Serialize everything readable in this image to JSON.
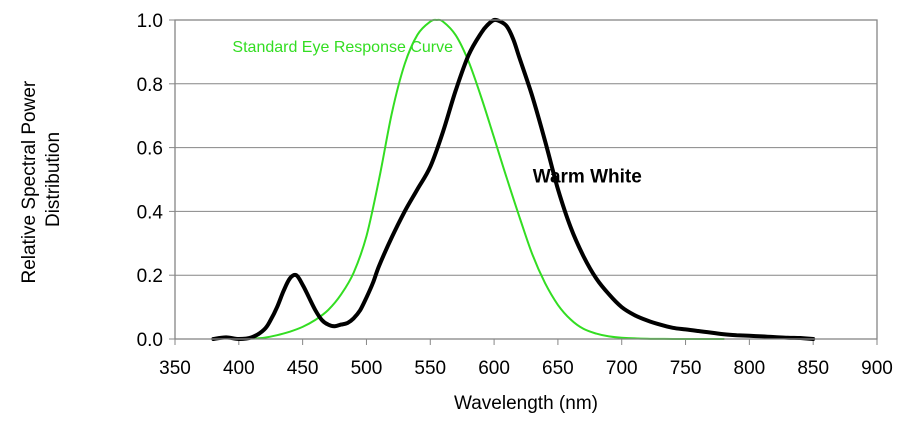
{
  "chart_data": {
    "type": "line",
    "title": "",
    "xlabel": "Wavelength (nm)",
    "ylabel_lines": [
      "Relative Spectral Power",
      "Distribution"
    ],
    "xlim": [
      350,
      900
    ],
    "ylim": [
      0,
      1
    ],
    "x_ticks": [
      "350",
      "400",
      "450",
      "500",
      "550",
      "600",
      "650",
      "700",
      "750",
      "800",
      "850",
      "900"
    ],
    "y_ticks": [
      "0.0",
      "0.2",
      "0.4",
      "0.6",
      "0.8",
      "1.0"
    ],
    "grid": true,
    "legend": "none",
    "series": [
      {
        "name": "Standard Eye Response Curve",
        "color": "#33dd22",
        "x": [
          410,
          420,
          430,
          440,
          450,
          460,
          470,
          480,
          490,
          500,
          510,
          520,
          530,
          540,
          550,
          555,
          560,
          570,
          580,
          590,
          600,
          610,
          620,
          630,
          640,
          650,
          660,
          670,
          680,
          690,
          700,
          720,
          740,
          760,
          780
        ],
        "y": [
          0.001,
          0.004,
          0.012,
          0.023,
          0.038,
          0.06,
          0.091,
          0.139,
          0.208,
          0.323,
          0.503,
          0.71,
          0.862,
          0.954,
          0.995,
          1.0,
          0.995,
          0.952,
          0.87,
          0.757,
          0.631,
          0.503,
          0.381,
          0.265,
          0.175,
          0.107,
          0.061,
          0.032,
          0.017,
          0.008,
          0.004,
          0.001,
          0.0,
          0.0,
          0.0
        ]
      },
      {
        "name": "Warm White",
        "color": "#000000",
        "x": [
          380,
          390,
          400,
          410,
          420,
          425,
          430,
          435,
          440,
          445,
          450,
          455,
          460,
          465,
          470,
          475,
          480,
          485,
          490,
          495,
          500,
          505,
          510,
          520,
          530,
          540,
          550,
          560,
          570,
          580,
          590,
          595,
          600,
          605,
          610,
          615,
          620,
          630,
          640,
          650,
          660,
          670,
          680,
          690,
          700,
          710,
          720,
          730,
          740,
          750,
          760,
          770,
          780,
          790,
          800,
          810,
          820,
          830,
          840,
          850
        ],
        "y": [
          0.0,
          0.005,
          0.0,
          0.005,
          0.03,
          0.06,
          0.1,
          0.15,
          0.19,
          0.2,
          0.17,
          0.13,
          0.09,
          0.06,
          0.045,
          0.04,
          0.045,
          0.05,
          0.065,
          0.09,
          0.13,
          0.175,
          0.23,
          0.32,
          0.4,
          0.47,
          0.54,
          0.65,
          0.78,
          0.89,
          0.96,
          0.985,
          1.0,
          0.995,
          0.98,
          0.94,
          0.88,
          0.76,
          0.62,
          0.47,
          0.35,
          0.26,
          0.19,
          0.14,
          0.1,
          0.075,
          0.058,
          0.045,
          0.035,
          0.03,
          0.025,
          0.02,
          0.015,
          0.012,
          0.01,
          0.008,
          0.006,
          0.004,
          0.003,
          0.0
        ]
      }
    ],
    "annotations": [
      {
        "text": "Standard Eye Response Curve",
        "color": "#33dd22",
        "x": 395,
        "y": 0.9,
        "anchor": "start",
        "bold": false
      },
      {
        "text": "Warm White",
        "color": "#000000",
        "x": 673,
        "y": 0.49,
        "anchor": "middle",
        "bold": true
      }
    ]
  }
}
